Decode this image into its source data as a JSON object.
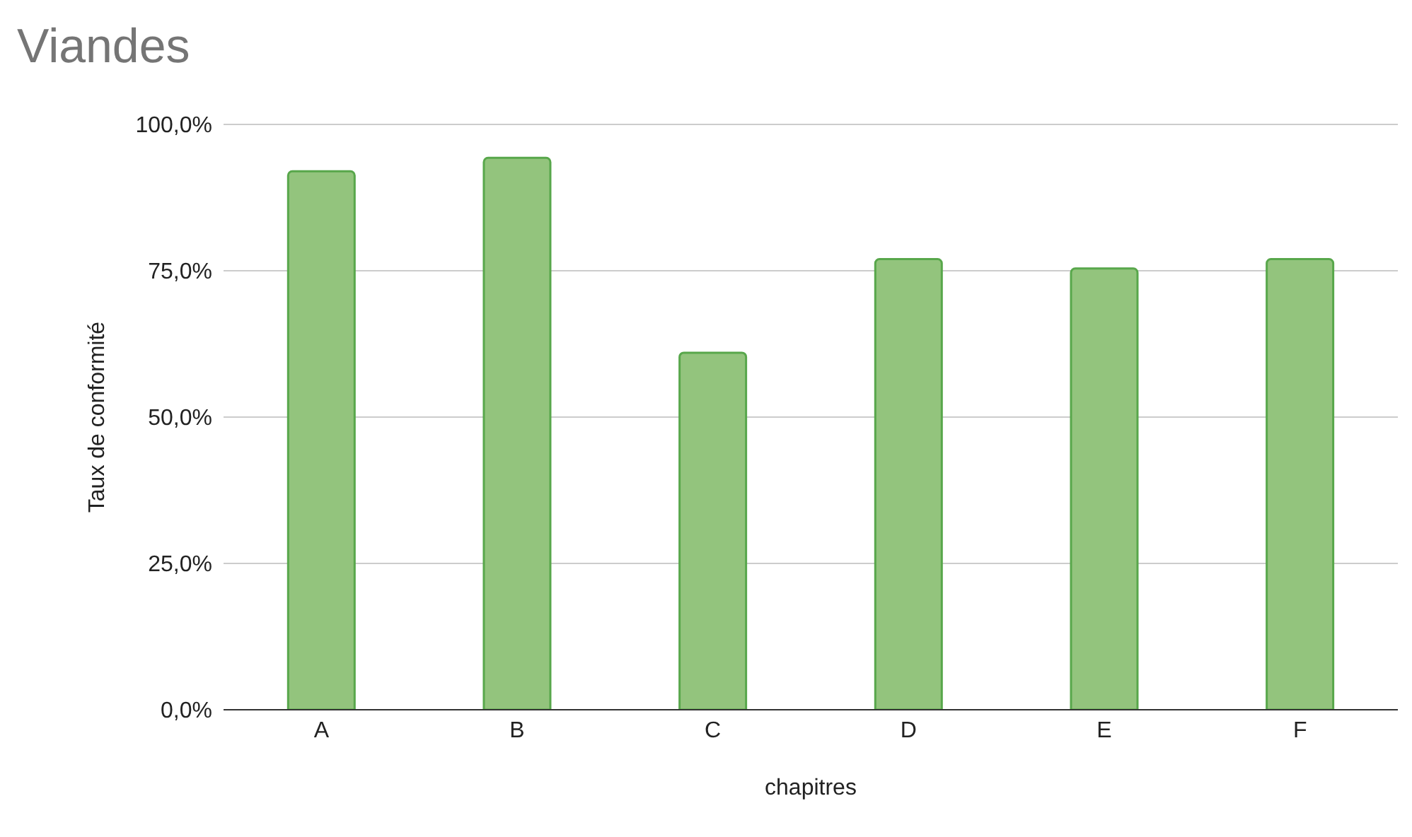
{
  "chart_data": {
    "type": "bar",
    "title": "Viandes",
    "xlabel": "chapitres",
    "ylabel": "Taux de conformité",
    "categories": [
      "A",
      "B",
      "C",
      "D",
      "E",
      "F"
    ],
    "values": [
      92,
      94.3,
      61,
      77,
      75.4,
      77
    ],
    "color": "#93c47d",
    "ylim": [
      0,
      100
    ],
    "yticks": [
      {
        "value": 0,
        "label": "0,0%"
      },
      {
        "value": 25,
        "label": "25,0%"
      },
      {
        "value": 50,
        "label": "50,0%"
      },
      {
        "value": 75,
        "label": "75,0%"
      },
      {
        "value": 100,
        "label": "100,0%"
      }
    ],
    "grid": "y",
    "legend": false
  }
}
